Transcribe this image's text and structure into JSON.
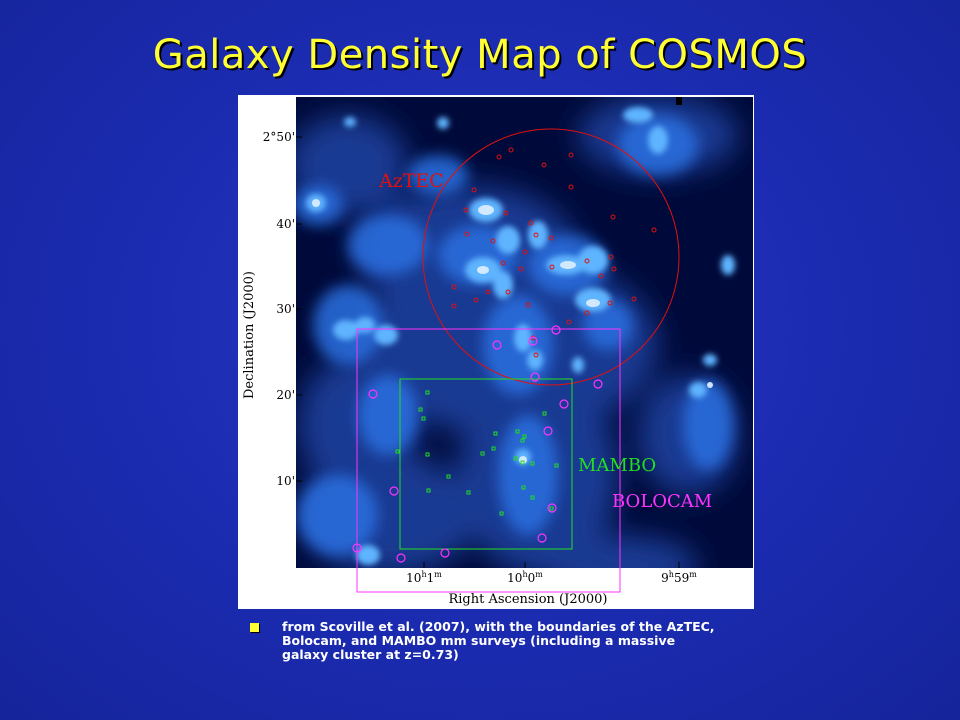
{
  "slide": {
    "title": "Galaxy Density Map of COSMOS",
    "bullet": "from Scoville et al. (2007), with the boundaries of the AzTEC, Bolocam, and MAMBO mm surveys (including a massive galaxy cluster at z=0.73)"
  },
  "figure": {
    "y_axis_title": "Declination (J2000)",
    "x_axis_title": "Right Ascension (J2000)",
    "y_ticks": [
      "2°50'",
      "40'",
      "30'",
      "20'",
      "10'"
    ],
    "x_ticks": [
      "10h1m",
      "10h0m",
      "9h59m"
    ],
    "x_tick_parts": [
      {
        "a": "10",
        "b": "h",
        "c": "1",
        "d": "m"
      },
      {
        "a": "10",
        "b": "h",
        "c": "0",
        "d": "m"
      },
      {
        "a": "9",
        "b": "h",
        "c": "59",
        "d": "m"
      }
    ],
    "regions": [
      {
        "label": "AzTEC",
        "color": "#e01010",
        "shape": "circle"
      },
      {
        "label": "MAMBO",
        "color": "#22dd22",
        "shape": "square"
      },
      {
        "label": "BOLOCAM",
        "color": "#ff33ff",
        "shape": "square"
      }
    ],
    "colors": {
      "map_background": "#000a3a",
      "density_glow": "#3f9dff"
    }
  }
}
